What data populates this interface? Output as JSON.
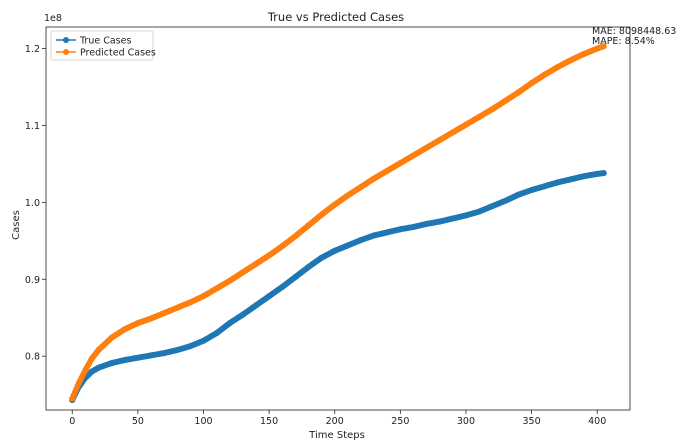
{
  "chart_data": {
    "type": "line",
    "title": "True vs Predicted Cases",
    "xlabel": "Time Steps",
    "ylabel": "Cases",
    "y_offset_label": "1e8",
    "y_multiplier": 100000000,
    "xlim": [
      -20,
      425
    ],
    "ylim": [
      0.73,
      1.228
    ],
    "x_ticks": [
      0,
      50,
      100,
      150,
      200,
      250,
      300,
      350,
      400
    ],
    "x_tick_labels": [
      "0",
      "50",
      "100",
      "150",
      "200",
      "250",
      "300",
      "350",
      "400"
    ],
    "y_ticks": [
      0.8,
      0.9,
      1.0,
      1.1,
      1.2
    ],
    "y_tick_labels": [
      "0.8",
      "0.9",
      "1.0",
      "1.1",
      "1.2"
    ],
    "grid": false,
    "legend_position": "top-left",
    "annotations": [
      "MAE: 8098448.63",
      "MAPE: 8.54%"
    ],
    "series": [
      {
        "name": "True Cases",
        "color": "#1f77b4",
        "x": [
          0,
          5,
          10,
          15,
          20,
          30,
          40,
          50,
          60,
          70,
          80,
          90,
          100,
          110,
          120,
          130,
          140,
          150,
          160,
          170,
          180,
          190,
          200,
          210,
          220,
          230,
          240,
          250,
          260,
          270,
          280,
          290,
          300,
          310,
          320,
          330,
          340,
          350,
          360,
          370,
          380,
          390,
          400,
          405
        ],
        "values": [
          0.743,
          0.76,
          0.772,
          0.78,
          0.785,
          0.791,
          0.795,
          0.798,
          0.801,
          0.804,
          0.808,
          0.813,
          0.82,
          0.83,
          0.843,
          0.854,
          0.866,
          0.878,
          0.89,
          0.903,
          0.916,
          0.928,
          0.937,
          0.944,
          0.951,
          0.957,
          0.961,
          0.965,
          0.968,
          0.972,
          0.975,
          0.979,
          0.983,
          0.988,
          0.995,
          1.002,
          1.01,
          1.016,
          1.021,
          1.026,
          1.03,
          1.034,
          1.037,
          1.038
        ]
      },
      {
        "name": "Predicted Cases",
        "color": "#ff7f0e",
        "x": [
          0,
          5,
          10,
          15,
          20,
          30,
          40,
          50,
          60,
          70,
          80,
          90,
          100,
          110,
          120,
          130,
          140,
          150,
          160,
          170,
          180,
          190,
          200,
          210,
          220,
          230,
          240,
          250,
          260,
          270,
          280,
          290,
          300,
          310,
          320,
          330,
          340,
          350,
          360,
          370,
          380,
          390,
          400,
          405
        ],
        "values": [
          0.745,
          0.765,
          0.782,
          0.797,
          0.808,
          0.824,
          0.835,
          0.843,
          0.849,
          0.856,
          0.863,
          0.87,
          0.878,
          0.888,
          0.898,
          0.909,
          0.92,
          0.931,
          0.943,
          0.956,
          0.97,
          0.984,
          0.997,
          1.009,
          1.02,
          1.031,
          1.041,
          1.051,
          1.061,
          1.071,
          1.081,
          1.091,
          1.101,
          1.111,
          1.121,
          1.132,
          1.143,
          1.155,
          1.166,
          1.176,
          1.185,
          1.193,
          1.2,
          1.203
        ]
      }
    ]
  }
}
